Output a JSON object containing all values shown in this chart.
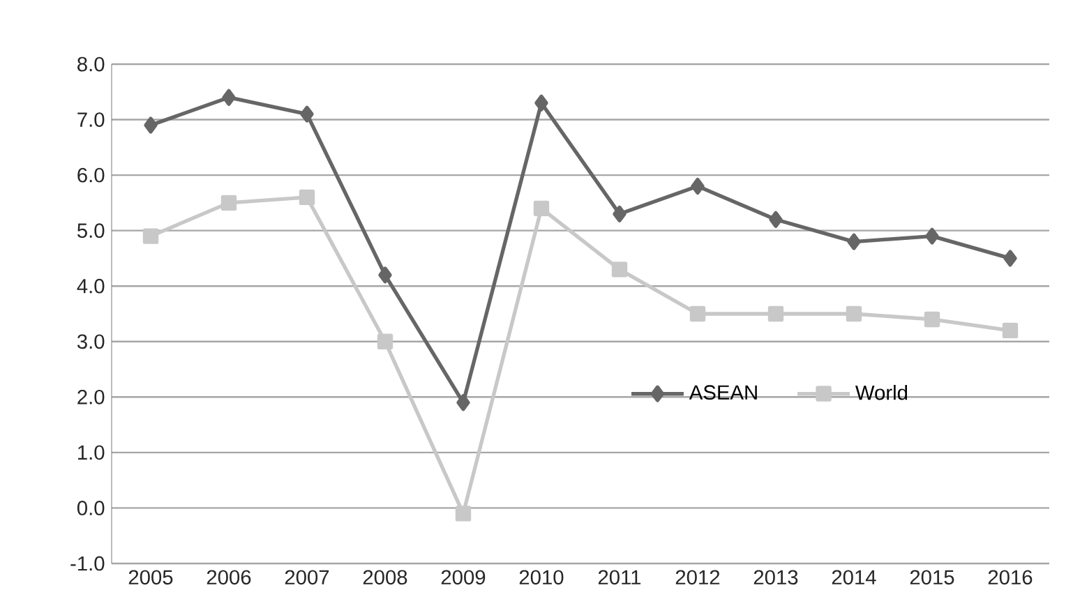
{
  "chart_data": {
    "type": "line",
    "categories": [
      "2005",
      "2006",
      "2007",
      "2008",
      "2009",
      "2010",
      "2011",
      "2012",
      "2013",
      "2014",
      "2015",
      "2016"
    ],
    "series": [
      {
        "name": "ASEAN",
        "color": "#666666",
        "marker": "diamond",
        "values": [
          6.9,
          7.4,
          7.1,
          4.2,
          1.9,
          7.3,
          5.3,
          5.8,
          5.2,
          4.8,
          4.9,
          4.5
        ]
      },
      {
        "name": "World",
        "color": "#c8c8c8",
        "marker": "square",
        "values": [
          4.9,
          5.5,
          5.6,
          3.0,
          -0.1,
          5.4,
          4.3,
          3.5,
          3.5,
          3.5,
          3.4,
          3.2
        ]
      }
    ],
    "ylim": [
      -1,
      8
    ],
    "yticks": [
      {
        "value": -1,
        "label": "-1.0"
      },
      {
        "value": 0,
        "label": "0.0"
      },
      {
        "value": 1,
        "label": "1.0"
      },
      {
        "value": 2,
        "label": "2.0"
      },
      {
        "value": 3,
        "label": "3.0"
      },
      {
        "value": 4,
        "label": "4.0"
      },
      {
        "value": 5,
        "label": "5.0"
      },
      {
        "value": 6,
        "label": "6.0"
      },
      {
        "value": 7,
        "label": "7.0"
      },
      {
        "value": 8,
        "label": "8.0"
      }
    ],
    "grid": "y",
    "legend": "right",
    "line_style": "solid"
  }
}
